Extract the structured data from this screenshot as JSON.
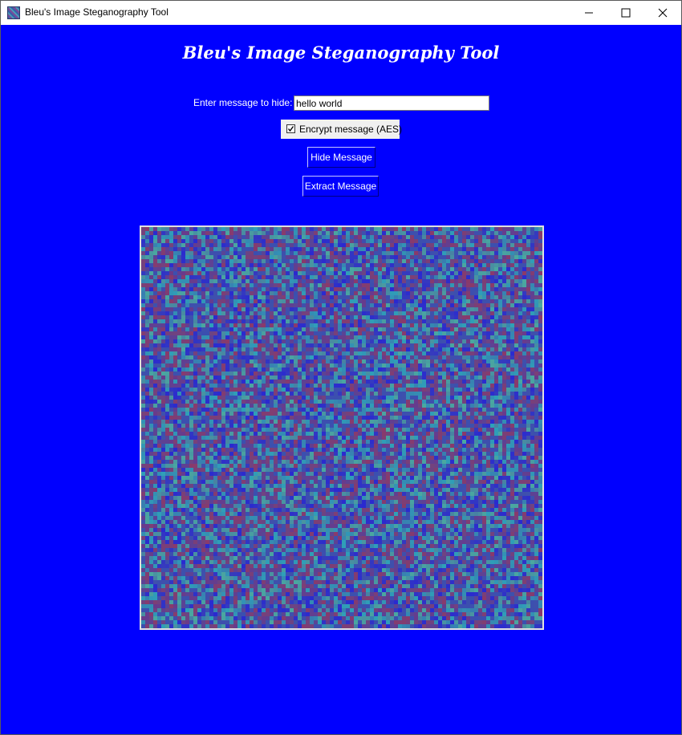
{
  "window": {
    "title": "Bleu's Image Steganography Tool",
    "icons": [
      "app-icon",
      "minimize-icon",
      "maximize-icon",
      "close-icon"
    ]
  },
  "app": {
    "heading": "Bleu's Image Steganography Tool",
    "message_label": "Enter message to hide:",
    "message_value": "hello world",
    "encrypt_label": "Encrypt message (AES)",
    "encrypt_checked": true,
    "hide_button": "Hide Message",
    "extract_button": "Extract Message"
  },
  "colors": {
    "background": "#0000ff",
    "text": "#ffffff",
    "noise_palette": [
      "#3b4fb0",
      "#6a3a8a",
      "#2fa0b8",
      "#8a3a6a",
      "#4aa8a0",
      "#2a2ad0"
    ]
  }
}
